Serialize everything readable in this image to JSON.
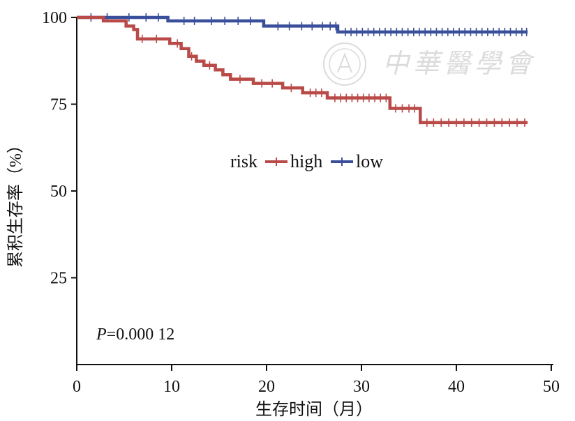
{
  "chart_data": {
    "type": "line",
    "subtype": "kaplan-meier",
    "title": "",
    "xlabel": "生存时间（月）",
    "ylabel": "累积生存率（%）",
    "xlim": [
      0,
      50
    ],
    "ylim": [
      0,
      100
    ],
    "x_ticks": [
      0,
      10,
      20,
      30,
      40,
      50
    ],
    "y_ticks": [
      100,
      75,
      50,
      25
    ],
    "grid": false,
    "legend": {
      "title": "risk",
      "position": "center",
      "entries": [
        "high",
        "low"
      ]
    },
    "annotation": {
      "p_label": "P",
      "p_value": "=0.000 12"
    },
    "watermark_text": "中華醫學會",
    "series": [
      {
        "name": "low",
        "color": "#3a4f9b",
        "steps": [
          [
            0,
            100
          ],
          [
            9.6,
            100
          ],
          [
            9.6,
            99
          ],
          [
            19.7,
            99
          ],
          [
            19.7,
            97.5
          ],
          [
            27.5,
            97.5
          ],
          [
            27.5,
            95.8
          ],
          [
            47.5,
            95.8
          ]
        ],
        "censored": [
          1.5,
          3.2,
          5.5,
          7.3,
          8.6,
          11.3,
          12.4,
          14.2,
          15.6,
          17.0,
          18.3,
          21.2,
          22.4,
          23.7,
          24.8,
          25.9,
          26.7,
          27.3,
          28.3,
          28.9,
          29.5,
          30.1,
          30.7,
          31.3,
          31.9,
          32.5,
          33.1,
          33.7,
          34.3,
          34.9,
          35.5,
          36.1,
          36.7,
          37.3,
          37.9,
          38.5,
          39.1,
          39.7,
          40.3,
          40.9,
          41.5,
          42.1,
          42.7,
          43.3,
          43.9,
          44.5,
          45.1,
          45.7,
          46.3,
          46.9,
          47.4
        ]
      },
      {
        "name": "high",
        "color": "#b94a48",
        "steps": [
          [
            0,
            100
          ],
          [
            2.8,
            100
          ],
          [
            2.8,
            99
          ],
          [
            5.2,
            99
          ],
          [
            5.2,
            97.5
          ],
          [
            6.0,
            97.5
          ],
          [
            6.0,
            96.5
          ],
          [
            6.4,
            96.5
          ],
          [
            6.4,
            93.8
          ],
          [
            9.8,
            93.8
          ],
          [
            9.8,
            92.5
          ],
          [
            11.0,
            92.5
          ],
          [
            11.0,
            91
          ],
          [
            11.8,
            91
          ],
          [
            11.8,
            88.8
          ],
          [
            12.6,
            88.8
          ],
          [
            12.6,
            87.4
          ],
          [
            13.4,
            87.4
          ],
          [
            13.4,
            86.2
          ],
          [
            14.6,
            86.2
          ],
          [
            14.6,
            84.9
          ],
          [
            15.4,
            84.9
          ],
          [
            15.4,
            83.5
          ],
          [
            16.2,
            83.5
          ],
          [
            16.2,
            82.2
          ],
          [
            18.6,
            82.2
          ],
          [
            18.6,
            81
          ],
          [
            21.7,
            81
          ],
          [
            21.7,
            79.7
          ],
          [
            23.8,
            79.7
          ],
          [
            23.8,
            78.3
          ],
          [
            26.4,
            78.3
          ],
          [
            26.4,
            76.8
          ],
          [
            33.0,
            76.8
          ],
          [
            33.0,
            73.8
          ],
          [
            36.2,
            73.8
          ],
          [
            36.2,
            69.7
          ],
          [
            47.5,
            69.7
          ]
        ],
        "censored": [
          6.9,
          8.4,
          10.6,
          12.1,
          14.0,
          17.2,
          19.5,
          20.6,
          22.6,
          24.6,
          25.2,
          25.8,
          27.2,
          27.8,
          28.4,
          29.0,
          29.6,
          30.2,
          30.8,
          31.4,
          32.0,
          32.6,
          33.6,
          34.3,
          35.0,
          35.6,
          36.9,
          37.6,
          38.4,
          39.2,
          40.0,
          40.8,
          41.6,
          42.4,
          43.2,
          44.0,
          44.8,
          45.6,
          46.4,
          47.2
        ]
      }
    ]
  }
}
